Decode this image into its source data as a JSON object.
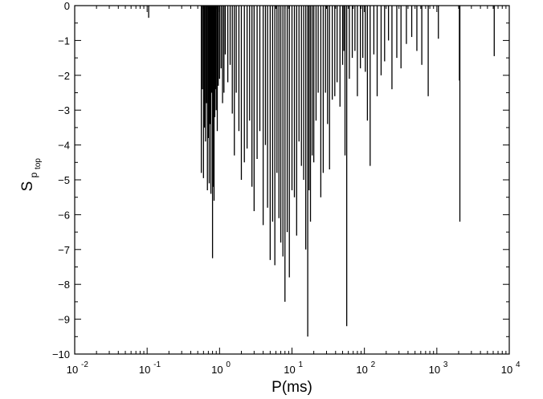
{
  "chart_data": {
    "type": "bar",
    "xlabel": "P(ms)",
    "ylabel_main": "S",
    "ylabel_sub1": "p",
    "ylabel_sub2": "top",
    "x_scale": "log",
    "xlim": [
      0.01,
      10000
    ],
    "ylim": [
      -10,
      0
    ],
    "grid": false,
    "x_ticks": [
      {
        "value": 0.01,
        "base": "10",
        "exp": "-2"
      },
      {
        "value": 0.1,
        "base": "10",
        "exp": "-1"
      },
      {
        "value": 1,
        "base": "10",
        "exp": "0"
      },
      {
        "value": 10,
        "base": "10",
        "exp": "1"
      },
      {
        "value": 100,
        "base": "10",
        "exp": "2"
      },
      {
        "value": 1000,
        "base": "10",
        "exp": "3"
      },
      {
        "value": 10000,
        "base": "10",
        "exp": "4"
      }
    ],
    "y_ticks": [
      {
        "value": 0,
        "label": "0"
      },
      {
        "value": -1,
        "label": "−1"
      },
      {
        "value": -2,
        "label": "−2"
      },
      {
        "value": -3,
        "label": "−3"
      },
      {
        "value": -4,
        "label": "−4"
      },
      {
        "value": -5,
        "label": "−5"
      },
      {
        "value": -6,
        "label": "−6"
      },
      {
        "value": -7,
        "label": "−7"
      },
      {
        "value": -8,
        "label": "−8"
      },
      {
        "value": -9,
        "label": "−9"
      },
      {
        "value": -10,
        "label": "−10"
      }
    ],
    "series": [
      {
        "x": [
          0.105,
          0.56,
          0.58,
          0.6,
          0.62,
          0.64,
          0.66,
          0.68,
          0.7,
          0.72,
          0.74,
          0.76,
          0.78,
          0.8,
          0.82,
          0.84,
          0.86,
          0.88,
          0.9,
          0.93,
          0.96,
          1.0,
          1.05,
          1.1,
          1.15,
          1.2,
          1.3,
          1.4,
          1.5,
          1.6,
          1.7,
          1.85,
          2.0,
          2.2,
          2.4,
          2.6,
          2.8,
          3.0,
          3.3,
          3.6,
          4.0,
          4.3,
          4.6,
          5.0,
          5.4,
          5.8,
          6.2,
          6.6,
          7.0,
          7.5,
          8.0,
          8.6,
          9.2,
          10.0,
          10.8,
          11.6,
          12.5,
          13.5,
          14.5,
          15.5,
          16.5,
          17.2,
          18.0,
          19.0,
          20.0,
          21.5,
          23.0,
          25.0,
          27.0,
          29.0,
          31.0,
          33.0,
          36.0,
          39.0,
          42.0,
          46.0,
          50.0,
          52.0,
          54.0,
          57.0,
          62.0,
          68.0,
          74.0,
          80.0,
          88.0,
          95.0,
          103.0,
          110.0,
          120.0,
          135.0,
          150.0,
          170.0,
          190.0,
          215.0,
          240.0,
          280.0,
          320.0,
          380.0,
          450.0,
          530.0,
          620.0,
          760.0,
          1050.0,
          2050.0,
          2080.0,
          6200.0
        ],
        "values": [
          -0.35,
          -4.8,
          -2.4,
          -4.95,
          -3.5,
          -3.9,
          -2.8,
          -5.3,
          -3.8,
          -5.1,
          -3.4,
          -5.4,
          -2.5,
          -7.25,
          -5.2,
          -5.6,
          -3.2,
          -2.4,
          -3.0,
          -3.6,
          -2.3,
          -2.1,
          -1.8,
          -2.8,
          -2.5,
          -1.4,
          -2.2,
          -1.7,
          -3.1,
          -4.3,
          -2.5,
          -3.6,
          -5.0,
          -4.5,
          -4.1,
          -3.3,
          -5.2,
          -5.9,
          -4.4,
          -3.6,
          -6.3,
          -4.0,
          -5.8,
          -7.3,
          -6.2,
          -7.45,
          -4.8,
          -6.1,
          -6.8,
          -7.2,
          -8.5,
          -6.5,
          -7.8,
          -5.3,
          -5.5,
          -6.6,
          -3.9,
          -4.6,
          -5.0,
          -7.0,
          -9.5,
          -5.3,
          -6.2,
          -4.3,
          -4.5,
          -3.3,
          -2.5,
          -5.5,
          -4.8,
          -2.5,
          -3.4,
          -4.7,
          -2.7,
          -2.6,
          -2.2,
          -2.9,
          -1.7,
          -1.3,
          -4.3,
          -9.2,
          -2.1,
          -1.5,
          -1.3,
          -2.6,
          -1.8,
          -1.5,
          -1.9,
          -3.3,
          -4.6,
          -1.4,
          -2.6,
          -2.0,
          -1.6,
          -1.0,
          -2.4,
          -1.5,
          -1.8,
          -1.1,
          -0.9,
          -1.3,
          -1.7,
          -2.6,
          -0.95,
          -2.15,
          -6.2,
          -1.45
        ]
      }
    ]
  }
}
